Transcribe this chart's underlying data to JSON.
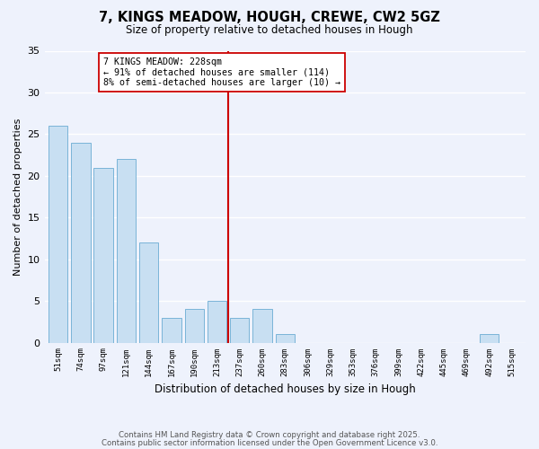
{
  "title": "7, KINGS MEADOW, HOUGH, CREWE, CW2 5GZ",
  "subtitle": "Size of property relative to detached houses in Hough",
  "xlabel": "Distribution of detached houses by size in Hough",
  "ylabel": "Number of detached properties",
  "categories": [
    "51sqm",
    "74sqm",
    "97sqm",
    "121sqm",
    "144sqm",
    "167sqm",
    "190sqm",
    "213sqm",
    "237sqm",
    "260sqm",
    "283sqm",
    "306sqm",
    "329sqm",
    "353sqm",
    "376sqm",
    "399sqm",
    "422sqm",
    "445sqm",
    "469sqm",
    "492sqm",
    "515sqm"
  ],
  "values": [
    26,
    24,
    21,
    22,
    12,
    3,
    4,
    5,
    3,
    4,
    1,
    0,
    0,
    0,
    0,
    0,
    0,
    0,
    0,
    1,
    0
  ],
  "bar_color": "#c8dff2",
  "bar_edge_color": "#7ab4d8",
  "vline_color": "#cc0000",
  "annotation_title": "7 KINGS MEADOW: 228sqm",
  "annotation_line1": "← 91% of detached houses are smaller (114)",
  "annotation_line2": "8% of semi-detached houses are larger (10) →",
  "annotation_box_color": "#ffffff",
  "annotation_box_edge": "#cc0000",
  "ylim": [
    0,
    35
  ],
  "yticks": [
    0,
    5,
    10,
    15,
    20,
    25,
    30,
    35
  ],
  "background_color": "#eef2fc",
  "footer1": "Contains HM Land Registry data © Crown copyright and database right 2025.",
  "footer2": "Contains public sector information licensed under the Open Government Licence v3.0."
}
